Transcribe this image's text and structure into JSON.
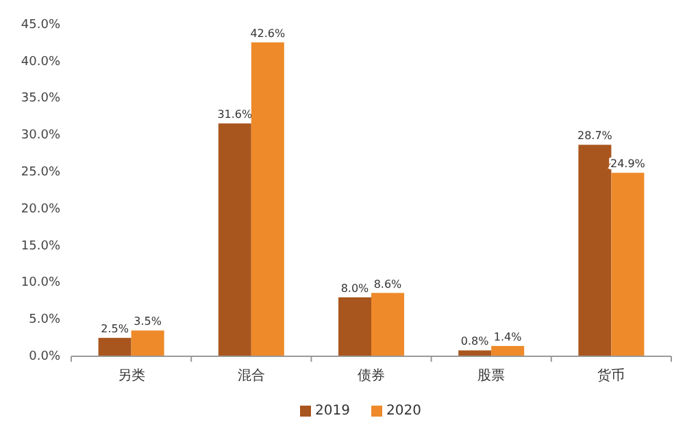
{
  "chart_data": {
    "type": "bar",
    "categories": [
      "另类",
      "混合",
      "债券",
      "股票",
      "货币"
    ],
    "series": [
      {
        "name": "2019",
        "color": "#a9561e",
        "values": [
          2.5,
          31.6,
          8.0,
          0.8,
          28.7
        ],
        "value_labels": [
          "2.5%",
          "31.6%",
          "8.0%",
          "0.8%",
          "28.7%"
        ]
      },
      {
        "name": "2020",
        "color": "#ee8a2a",
        "values": [
          3.5,
          42.6,
          8.6,
          1.4,
          24.9
        ],
        "value_labels": [
          "3.5%",
          "42.6%",
          "8.6%",
          "1.4%",
          "24.9%"
        ]
      }
    ],
    "ylim": [
      0,
      45
    ],
    "yticks": [
      {
        "value": 0,
        "label": "0.0%"
      },
      {
        "value": 5,
        "label": "5.0%"
      },
      {
        "value": 10,
        "label": "10.0%"
      },
      {
        "value": 15,
        "label": "15.0%"
      },
      {
        "value": 20,
        "label": "20.0%"
      },
      {
        "value": 25,
        "label": "25.0%"
      },
      {
        "value": 30,
        "label": "30.0%"
      },
      {
        "value": 35,
        "label": "35.0%"
      },
      {
        "value": 40,
        "label": "40.0%"
      },
      {
        "value": 45,
        "label": "45.0%"
      }
    ],
    "legend": "bottom"
  }
}
